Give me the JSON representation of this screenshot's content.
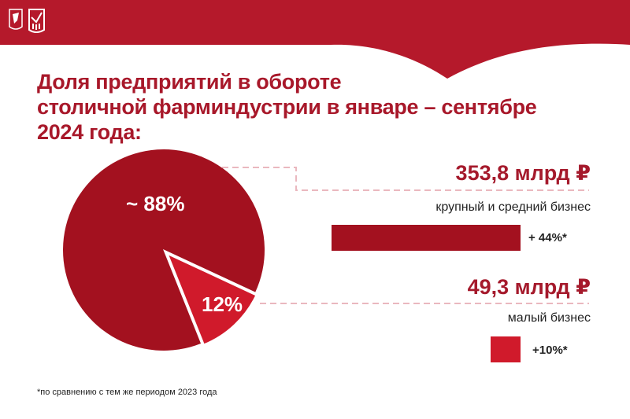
{
  "title_lines": [
    "Доля предприятий в обороте",
    "столичной фарминдустрии в январе – сентябре",
    "2024 года:"
  ],
  "colors": {
    "header": "#b5192b",
    "large": "#a3111f",
    "small": "#d01a2b"
  },
  "logos": [
    "moscow-coat-of-arms",
    "statistics-emblem"
  ],
  "chart_data": {
    "type": "pie",
    "slices": [
      {
        "label": "~ 88%",
        "value": 88,
        "amount": "353,8 млрд ₽",
        "category": "крупный и средний бизнес",
        "growth": "+ 44%*",
        "growth_value": 44
      },
      {
        "label": "12%",
        "value": 12,
        "amount": "49,3 млрд ₽",
        "category": "малый бизнес",
        "growth": "+10%*",
        "growth_value": 10
      }
    ]
  },
  "footnote": "*по сравнению с тем же периодом 2023 года"
}
